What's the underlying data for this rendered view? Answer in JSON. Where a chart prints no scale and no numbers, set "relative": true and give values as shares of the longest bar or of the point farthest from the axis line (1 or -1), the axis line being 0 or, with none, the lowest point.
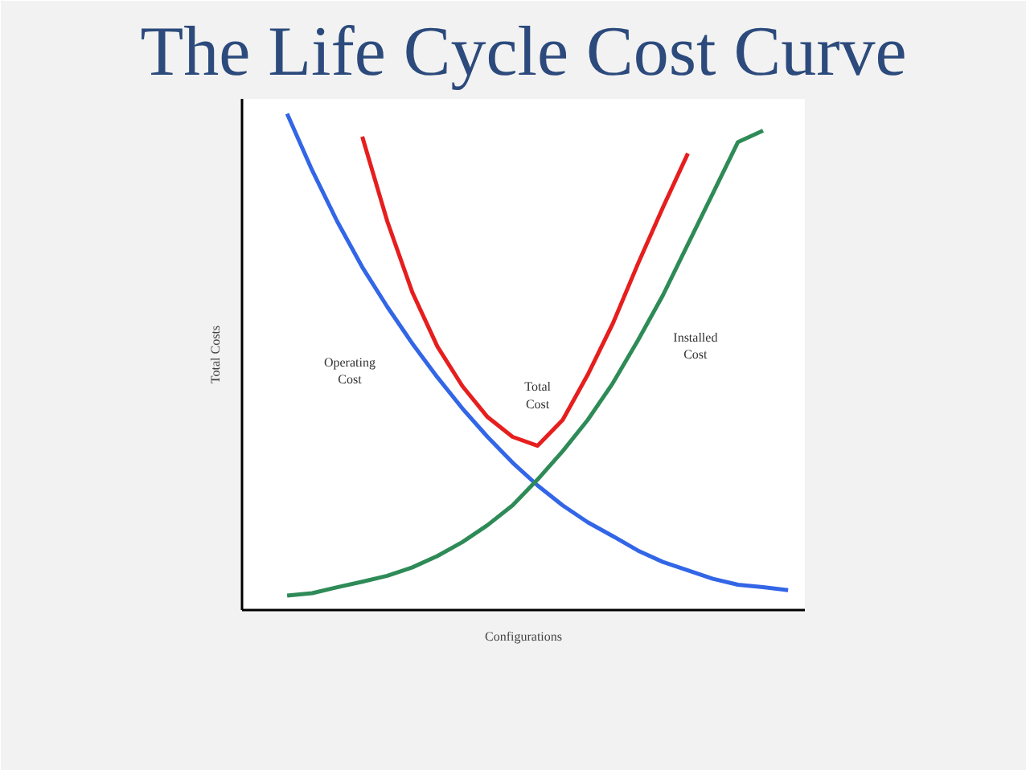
{
  "chart_data": {
    "type": "line",
    "title": "The Life Cycle Cost Curve",
    "xlabel": "Configurations",
    "ylabel": "Total Costs",
    "relative": true,
    "legend": false,
    "grid": false,
    "categories": [
      null,
      null,
      null,
      null,
      null,
      null,
      null,
      null,
      null,
      null,
      null,
      null,
      null,
      null,
      null,
      null,
      null,
      null,
      null,
      null,
      null
    ],
    "series": [
      {
        "name": "Operating Cost",
        "color": "#3366e6",
        "values": [
          1.0,
          0.886,
          0.783,
          0.691,
          0.611,
          0.537,
          0.469,
          0.406,
          0.349,
          0.297,
          0.251,
          0.211,
          0.177,
          0.149,
          0.12,
          0.097,
          0.08,
          0.063,
          0.051,
          0.046,
          0.04
        ]
      },
      {
        "name": "Total Cost",
        "color": "#e61e1e",
        "values": [
          null,
          null,
          null,
          0.954,
          0.783,
          0.64,
          0.531,
          0.451,
          0.389,
          0.349,
          0.331,
          0.383,
          0.474,
          0.577,
          0.697,
          0.811,
          0.92,
          null,
          null,
          null,
          null
        ]
      },
      {
        "name": "Installed Cost",
        "color": "#2e8b57",
        "values": [
          0.029,
          0.034,
          0.046,
          0.057,
          0.069,
          0.086,
          0.109,
          0.137,
          0.171,
          0.211,
          0.263,
          0.32,
          0.383,
          0.457,
          0.543,
          0.634,
          0.737,
          0.84,
          0.943,
          0.966,
          null
        ]
      }
    ]
  }
}
